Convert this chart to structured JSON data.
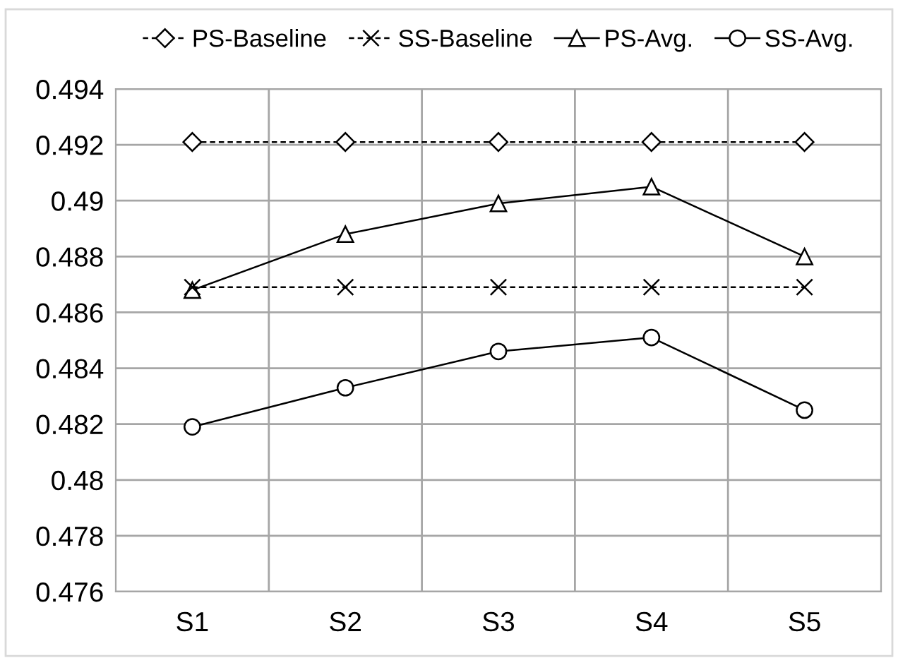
{
  "chart_data": {
    "type": "line",
    "categories": [
      "S1",
      "S2",
      "S3",
      "S4",
      "S5"
    ],
    "series": [
      {
        "name": "PS-Baseline",
        "color": "#000000",
        "marker": "diamond",
        "line_style": "dashed",
        "values": [
          0.4921,
          0.4921,
          0.4921,
          0.4921,
          0.4921
        ]
      },
      {
        "name": "SS-Baseline",
        "color": "#000000",
        "marker": "cross",
        "line_style": "dashed",
        "values": [
          0.4869,
          0.4869,
          0.4869,
          0.4869,
          0.4869
        ]
      },
      {
        "name": "PS-Avg.",
        "color": "#000000",
        "marker": "triangle",
        "line_style": "solid",
        "values": [
          0.4868,
          0.4888,
          0.4899,
          0.4905,
          0.488
        ]
      },
      {
        "name": "SS-Avg.",
        "color": "#000000",
        "marker": "circle",
        "line_style": "solid",
        "values": [
          0.4819,
          0.4833,
          0.4846,
          0.4851,
          0.4825
        ]
      }
    ],
    "ylim": [
      0.476,
      0.494
    ],
    "yticks": [
      0.476,
      0.478,
      0.48,
      0.482,
      0.484,
      0.486,
      0.488,
      0.49,
      0.492,
      0.494
    ],
    "grid": true,
    "legend": "top"
  }
}
